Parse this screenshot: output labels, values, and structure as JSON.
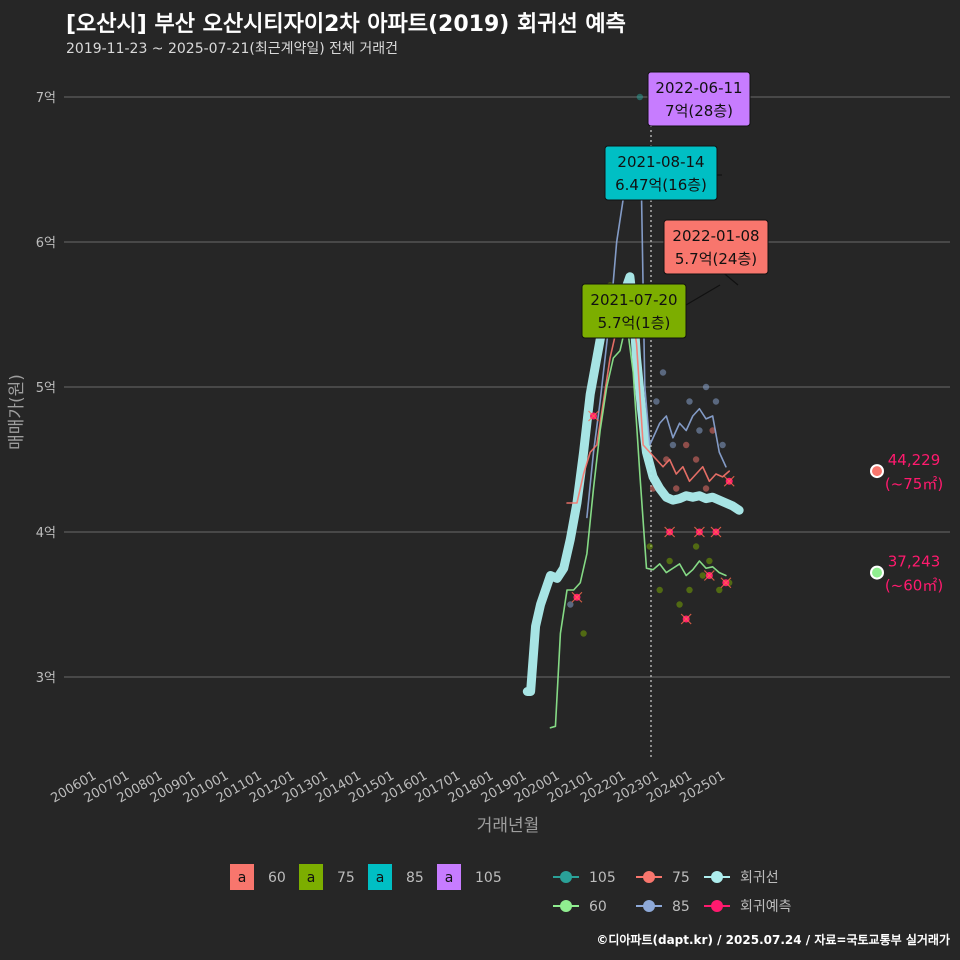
{
  "header": {
    "title": "[오산시] 부산 오산시티자이2차 아파트(2019) 회귀선 예측",
    "subtitle": "2019-11-23 ~ 2025-07-21(최근계약일) 전체 거래건"
  },
  "caption": "©디아파트(dapt.kr) / 2025.07.24 / 자료=국토교통부 실거래가",
  "colors": {
    "background": "#262626",
    "area60": "#f8766d",
    "area75": "#7cae00",
    "area85": "#00bfc4",
    "area105": "#c77cff",
    "line60": "#90ee90",
    "line75": "#f8766d",
    "line85": "#8ea9d8",
    "line105": "#2aa198",
    "regression": "#aeeeee",
    "forecast": "#ff1a6e"
  },
  "chart_data": {
    "type": "line",
    "title": "[오산시] 부산 오산시티자이2차 아파트(2019) 회귀선 예측",
    "xlabel": "거래년월",
    "ylabel": "매매가(원)",
    "x_ticks": [
      "200601",
      "200701",
      "200801",
      "200901",
      "201001",
      "201101",
      "201201",
      "201301",
      "201401",
      "201501",
      "201601",
      "201701",
      "201801",
      "201901",
      "202001",
      "202101",
      "202201",
      "202301",
      "202401",
      "202501"
    ],
    "y_ticks": [
      "3억",
      "4억",
      "5억",
      "6억",
      "7억"
    ],
    "ylim": [
      2.5,
      7.3
    ],
    "grid": true,
    "legend_position": "bottom",
    "legend_fill": [
      {
        "key": "a",
        "label": "60",
        "color": "#f8766d"
      },
      {
        "key": "a",
        "label": "75",
        "color": "#7cae00"
      },
      {
        "key": "a",
        "label": "85",
        "color": "#00bfc4"
      },
      {
        "key": "a",
        "label": "105",
        "color": "#c77cff"
      }
    ],
    "legend_lines": [
      {
        "label": "105",
        "color": "#2aa198"
      },
      {
        "label": "75",
        "color": "#f8766d"
      },
      {
        "label": "회귀선",
        "color": "#aeeeee"
      },
      {
        "label": "60",
        "color": "#90ee90"
      },
      {
        "label": "85",
        "color": "#8ea9d8"
      },
      {
        "label": "회귀예측",
        "color": "#ff1a6e"
      }
    ],
    "annotations": [
      {
        "date": "2022-06-11",
        "text": "7억(28층)",
        "color": "#c77cff",
        "x": 2022.45,
        "y": 7.0
      },
      {
        "date": "2021-08-14",
        "text": "6.47억(16층)",
        "color": "#00bfc4",
        "x": 2021.62,
        "y": 6.47
      },
      {
        "date": "2022-01-08",
        "text": "5.7억(24층)",
        "color": "#f8766d",
        "x": 2022.02,
        "y": 5.7
      },
      {
        "date": "2021-07-20",
        "text": "5.7억(1층)",
        "color": "#7cae00",
        "x": 2021.55,
        "y": 5.7
      }
    ],
    "end_labels": [
      {
        "value": "44,229",
        "sub": "(~75㎡)",
        "y": 4.42
      },
      {
        "value": "37,243",
        "sub": "(~60㎡)",
        "y": 3.72
      }
    ],
    "series": [
      {
        "name": "회귀선",
        "color": "#aeeeee",
        "points": [
          [
            2019.0,
            2.9
          ],
          [
            2019.1,
            2.9
          ],
          [
            2019.25,
            3.35
          ],
          [
            2019.4,
            3.5
          ],
          [
            2019.55,
            3.6
          ],
          [
            2019.7,
            3.7
          ],
          [
            2019.9,
            3.68
          ],
          [
            2020.1,
            3.75
          ],
          [
            2020.3,
            3.95
          ],
          [
            2020.5,
            4.2
          ],
          [
            2020.7,
            4.55
          ],
          [
            2020.9,
            4.95
          ],
          [
            2021.1,
            5.2
          ],
          [
            2021.3,
            5.45
          ],
          [
            2021.5,
            5.58
          ],
          [
            2021.7,
            5.6
          ],
          [
            2021.9,
            5.63
          ],
          [
            2022.1,
            5.76
          ],
          [
            2022.2,
            5.55
          ],
          [
            2022.3,
            5.2
          ],
          [
            2022.45,
            4.85
          ],
          [
            2022.6,
            4.55
          ],
          [
            2022.8,
            4.38
          ],
          [
            2023.0,
            4.3
          ],
          [
            2023.2,
            4.24
          ],
          [
            2023.4,
            4.22
          ],
          [
            2023.6,
            4.23
          ],
          [
            2023.8,
            4.25
          ],
          [
            2024.0,
            4.24
          ],
          [
            2024.2,
            4.25
          ],
          [
            2024.4,
            4.23
          ],
          [
            2024.6,
            4.24
          ],
          [
            2024.8,
            4.22
          ],
          [
            2025.0,
            4.2
          ],
          [
            2025.2,
            4.18
          ],
          [
            2025.4,
            4.15
          ]
        ]
      },
      {
        "name": "85",
        "color": "#8ea9d8",
        "points": [
          [
            2020.8,
            4.1
          ],
          [
            2021.0,
            4.55
          ],
          [
            2021.2,
            4.9
          ],
          [
            2021.4,
            5.3
          ],
          [
            2021.55,
            5.6
          ],
          [
            2021.7,
            6.0
          ],
          [
            2021.9,
            6.3
          ],
          [
            2022.0,
            6.42
          ],
          [
            2022.1,
            6.35
          ],
          [
            2022.3,
            6.33
          ],
          [
            2022.45,
            6.33
          ],
          [
            2022.55,
            5.0
          ],
          [
            2022.7,
            4.6
          ],
          [
            2022.9,
            4.7
          ],
          [
            2023.0,
            4.75
          ],
          [
            2023.2,
            4.8
          ],
          [
            2023.4,
            4.65
          ],
          [
            2023.6,
            4.75
          ],
          [
            2023.8,
            4.7
          ],
          [
            2024.0,
            4.8
          ],
          [
            2024.2,
            4.85
          ],
          [
            2024.4,
            4.78
          ],
          [
            2024.6,
            4.8
          ],
          [
            2024.8,
            4.55
          ],
          [
            2025.0,
            4.45
          ]
        ]
      },
      {
        "name": "75",
        "color": "#f8766d",
        "points": [
          [
            2020.2,
            4.2
          ],
          [
            2020.5,
            4.2
          ],
          [
            2020.7,
            4.4
          ],
          [
            2020.9,
            4.55
          ],
          [
            2021.1,
            4.6
          ],
          [
            2021.3,
            4.9
          ],
          [
            2021.5,
            5.2
          ],
          [
            2021.7,
            5.4
          ],
          [
            2021.9,
            5.6
          ],
          [
            2022.1,
            5.6
          ],
          [
            2022.3,
            5.3
          ],
          [
            2022.5,
            4.6
          ],
          [
            2022.7,
            4.55
          ],
          [
            2022.9,
            4.5
          ],
          [
            2023.1,
            4.45
          ],
          [
            2023.3,
            4.5
          ],
          [
            2023.5,
            4.4
          ],
          [
            2023.7,
            4.45
          ],
          [
            2023.9,
            4.35
          ],
          [
            2024.1,
            4.4
          ],
          [
            2024.3,
            4.45
          ],
          [
            2024.5,
            4.35
          ],
          [
            2024.7,
            4.4
          ],
          [
            2024.9,
            4.38
          ],
          [
            2025.1,
            4.42
          ]
        ]
      },
      {
        "name": "60",
        "color": "#90ee90",
        "points": [
          [
            2019.7,
            2.65
          ],
          [
            2019.85,
            2.66
          ],
          [
            2020.0,
            3.3
          ],
          [
            2020.2,
            3.6
          ],
          [
            2020.4,
            3.6
          ],
          [
            2020.6,
            3.65
          ],
          [
            2020.8,
            3.85
          ],
          [
            2021.0,
            4.3
          ],
          [
            2021.2,
            4.7
          ],
          [
            2021.4,
            5.0
          ],
          [
            2021.6,
            5.2
          ],
          [
            2021.8,
            5.25
          ],
          [
            2022.0,
            5.45
          ],
          [
            2022.2,
            5.1
          ],
          [
            2022.4,
            4.4
          ],
          [
            2022.6,
            3.75
          ],
          [
            2022.8,
            3.74
          ],
          [
            2023.0,
            3.78
          ],
          [
            2023.2,
            3.72
          ],
          [
            2023.4,
            3.75
          ],
          [
            2023.6,
            3.78
          ],
          [
            2023.8,
            3.7
          ],
          [
            2024.0,
            3.74
          ],
          [
            2024.2,
            3.8
          ],
          [
            2024.4,
            3.75
          ],
          [
            2024.6,
            3.76
          ],
          [
            2024.8,
            3.72
          ],
          [
            2025.0,
            3.7
          ]
        ]
      }
    ],
    "scatter_points": [
      [
        2021.6,
        6.47,
        "#00bfc4"
      ],
      [
        2022.4,
        7.0,
        "#2aa198"
      ],
      [
        2021.0,
        4.8,
        "#f8766d"
      ],
      [
        2021.5,
        5.7,
        "#7cae00"
      ],
      [
        2022.9,
        4.9,
        "#8ea9d8"
      ],
      [
        2023.1,
        5.1,
        "#8ea9d8"
      ],
      [
        2023.4,
        4.6,
        "#8ea9d8"
      ],
      [
        2023.9,
        4.9,
        "#8ea9d8"
      ],
      [
        2024.2,
        4.7,
        "#8ea9d8"
      ],
      [
        2024.4,
        5.0,
        "#8ea9d8"
      ],
      [
        2024.7,
        4.9,
        "#8ea9d8"
      ],
      [
        2024.9,
        4.6,
        "#8ea9d8"
      ],
      [
        2022.8,
        4.3,
        "#f8766d"
      ],
      [
        2023.2,
        4.5,
        "#f8766d"
      ],
      [
        2023.5,
        4.3,
        "#f8766d"
      ],
      [
        2023.8,
        4.6,
        "#f8766d"
      ],
      [
        2024.1,
        4.5,
        "#f8766d"
      ],
      [
        2024.4,
        4.3,
        "#f8766d"
      ],
      [
        2024.6,
        4.7,
        "#f8766d"
      ],
      [
        2022.7,
        3.9,
        "#7cae00"
      ],
      [
        2023.0,
        3.6,
        "#7cae00"
      ],
      [
        2023.3,
        3.8,
        "#7cae00"
      ],
      [
        2023.6,
        3.5,
        "#7cae00"
      ],
      [
        2023.9,
        3.6,
        "#7cae00"
      ],
      [
        2024.1,
        3.9,
        "#7cae00"
      ],
      [
        2024.3,
        3.7,
        "#7cae00"
      ],
      [
        2024.5,
        3.8,
        "#7cae00"
      ],
      [
        2024.8,
        3.6,
        "#7cae00"
      ],
      [
        2025.1,
        3.65,
        "#7cae00"
      ],
      [
        2020.3,
        3.5,
        "#8ea9d8"
      ],
      [
        2020.7,
        3.3,
        "#7cae00"
      ]
    ],
    "forecast_points": [
      [
        2020.5,
        3.55
      ],
      [
        2021.0,
        4.8
      ],
      [
        2023.3,
        4.0
      ],
      [
        2023.8,
        3.4
      ],
      [
        2024.2,
        4.0
      ],
      [
        2024.5,
        3.7
      ],
      [
        2024.7,
        4.0
      ],
      [
        2025.0,
        3.65
      ],
      [
        2025.1,
        4.35
      ]
    ]
  }
}
